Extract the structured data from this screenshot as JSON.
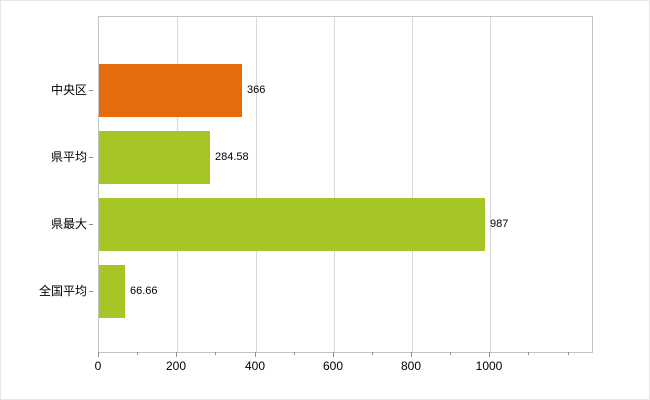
{
  "chart_data": {
    "type": "bar",
    "orientation": "horizontal",
    "title": "",
    "xlabel": "",
    "ylabel": "",
    "categories": [
      "中央区",
      "県平均",
      "県最大",
      "全国平均"
    ],
    "values": [
      366,
      284.58,
      987,
      66.66
    ],
    "value_labels": [
      "366",
      "284.58",
      "987",
      "66.66"
    ],
    "bar_colors": [
      "#e46c0a",
      "#a5c624",
      "#a5c624",
      "#a5c624"
    ],
    "xlim": [
      0,
      1260
    ],
    "x_ticks": [
      0,
      200,
      400,
      600,
      800,
      1000
    ],
    "x_tick_labels": [
      "0",
      "200",
      "400",
      "600",
      "800",
      "1000"
    ],
    "minor_tick_step": 100,
    "minor_tick_max": 1200,
    "grid": "vertical-major",
    "legend": "none"
  },
  "colors": {
    "background": "#ffffff",
    "plot_border": "#c3c3c3",
    "gridline": "#d9d9d9",
    "tick": "#8c8c8c",
    "text": "#000000",
    "bar_orange": "#e46c0a",
    "bar_green": "#a5c624"
  }
}
